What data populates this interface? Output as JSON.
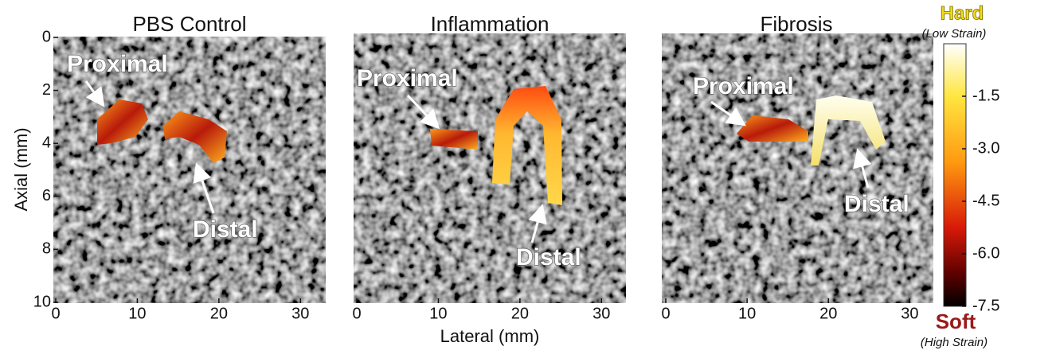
{
  "chart_data": [
    {
      "type": "image",
      "title": "PBS Control",
      "xlim": [
        0,
        33
      ],
      "xticks": [
        0,
        10,
        20,
        30
      ],
      "ylim": [
        10,
        0
      ],
      "yticks": [
        0,
        2,
        4,
        6,
        8,
        10
      ],
      "ylabel": "Axial (mm)",
      "annotations": [
        "Proximal",
        "Distal"
      ]
    },
    {
      "type": "image",
      "title": "Inflammation",
      "xlim": [
        0,
        33
      ],
      "xticks": [
        0,
        10,
        20,
        30
      ],
      "xlabel": "Lateral (mm)",
      "annotations": [
        "Proximal",
        "Distal"
      ]
    },
    {
      "type": "image",
      "title": "Fibrosis",
      "xlim": [
        0,
        33
      ],
      "xticks": [
        0,
        10,
        20,
        30
      ],
      "annotations": [
        "Proximal",
        "Distal"
      ]
    },
    {
      "type": "colorbar",
      "title": "Hard",
      "subtitle": "(Low Strain)",
      "bottom_title": "Soft",
      "bottom_subtitle": "(High Strain)",
      "ylim": [
        -7.5,
        0
      ],
      "yticks": [
        -1.5,
        {
          "value": -3,
          "label": "-3.0"
        },
        -4.5,
        {
          "value": -6,
          "label": "-6.0"
        },
        -7.5
      ]
    }
  ]
}
